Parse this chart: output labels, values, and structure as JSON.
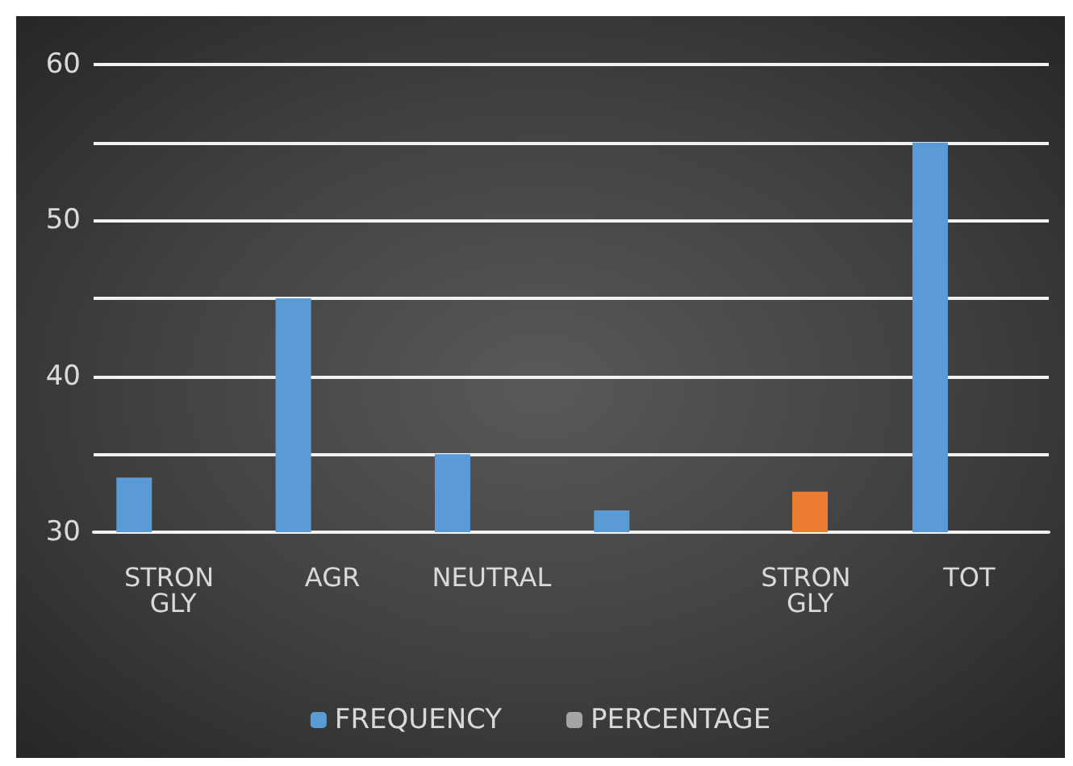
{
  "chart_data": {
    "type": "bar",
    "categories": [
      "STRON GLY",
      "AGR",
      "NEUTRAL",
      null,
      "STRON GLY",
      "TOT"
    ],
    "series": [
      {
        "name": "FREQUENCY",
        "color": "#5b9bd5",
        "values": [
          33.5,
          45,
          35,
          31.4,
          null,
          55
        ]
      },
      {
        "color": "#ed7d31",
        "values": [
          null,
          null,
          null,
          null,
          32.6,
          null
        ]
      },
      {
        "name": "PERCENTAGE",
        "color": "#a5a5a5",
        "values": [
          null,
          null,
          null,
          null,
          null,
          null
        ]
      }
    ],
    "ylim": [
      30,
      60
    ],
    "yticks": [
      30,
      {
        "value": 35,
        "label": null
      },
      40,
      {
        "value": 45,
        "label": null
      },
      50,
      {
        "value": 55,
        "label": null
      },
      60
    ],
    "grid": true,
    "legend": "bottom"
  }
}
